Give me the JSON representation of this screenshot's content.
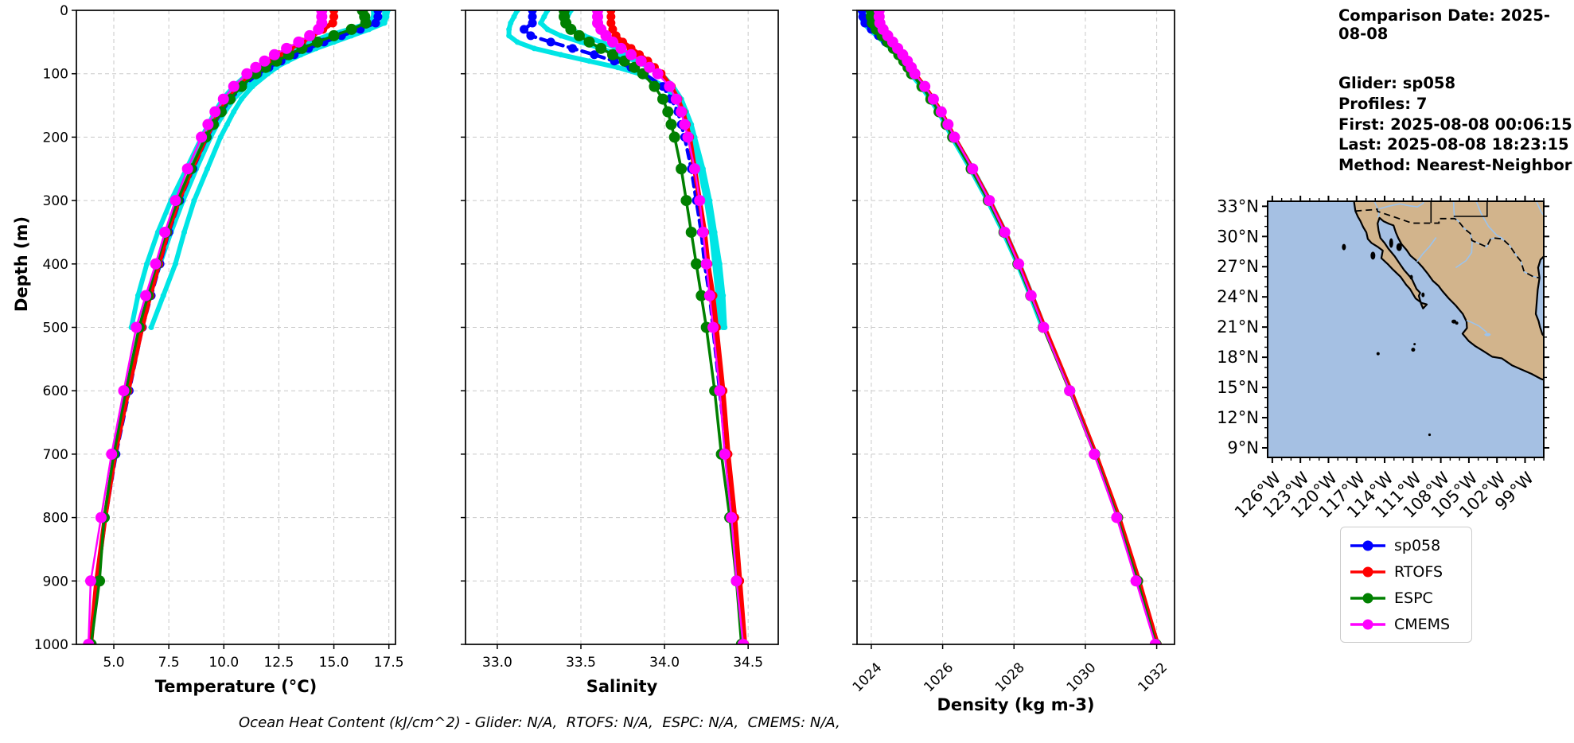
{
  "info_panel": {
    "comparison_date": "Comparison Date: 2025-08-08",
    "glider": "Glider: sp058",
    "profiles": "Profiles: 7",
    "first": "First: 2025-08-08 00:06:15",
    "last": "Last: 2025-08-08 18:23:15",
    "method": "Method: Nearest-Neighbor"
  },
  "axes": {
    "depth_label": "Depth (m)"
  },
  "footer": {
    "ohc_note": "Ocean Heat Content (kJ/cm^2) - Glider: N/A,  RTOFS: N/A,  ESPC: N/A,  CMEMS: N/A,"
  },
  "legend": {
    "items": [
      {
        "label": "sp058",
        "color": "#0000FF"
      },
      {
        "label": "RTOFS",
        "color": "#FF0000"
      },
      {
        "label": "ESPC",
        "color": "#008000"
      },
      {
        "label": "CMEMS",
        "color": "#FF00FF"
      }
    ]
  },
  "map": {
    "lat_tick_labels": [
      "33°N",
      "30°N",
      "27°N",
      "24°N",
      "21°N",
      "18°N",
      "15°N",
      "12°N",
      "9°N"
    ],
    "lat_tick_values": [
      33,
      30,
      27,
      24,
      21,
      18,
      15,
      12,
      9
    ],
    "lon_tick_labels": [
      "126°W",
      "123°W",
      "120°W",
      "117°W",
      "114°W",
      "111°W",
      "108°W",
      "105°W",
      "102°W",
      "99°W"
    ],
    "lon_tick_values": [
      -126,
      -123,
      -120,
      -117,
      -114,
      -111,
      -108,
      -105,
      -102,
      -99
    ],
    "ocean_color": "#A5C0E3",
    "land_color": "#D2B48C",
    "river_color": "#9CC3EC",
    "coast_color": "#000000"
  },
  "chart_data": [
    {
      "type": "line",
      "name": "temperature-profile",
      "xlabel": "Temperature (°C)",
      "ylabel": "Depth (m)",
      "xlim": [
        3.3,
        17.8
      ],
      "ylim": [
        0,
        1000
      ],
      "y_inverted": true,
      "grid": true,
      "xticks": [
        5.0,
        7.5,
        10.0,
        12.5,
        15.0,
        17.5
      ],
      "xtick_labels": [
        "5.0",
        "7.5",
        "10.0",
        "12.5",
        "15.0",
        "17.5"
      ],
      "yticks": [
        0,
        100,
        200,
        300,
        400,
        500,
        600,
        700,
        800,
        900,
        1000
      ],
      "depths": [
        0,
        10,
        20,
        30,
        40,
        50,
        60,
        70,
        80,
        90,
        100,
        120,
        140,
        160,
        180,
        200,
        250,
        300,
        350,
        400,
        450,
        500,
        600,
        700,
        800,
        900,
        1000
      ],
      "series": [
        {
          "name": "glider-raw-1",
          "color": "#00E5E5",
          "line_width": 6,
          "dash": null,
          "marker_size": 3.5,
          "values": [
            17.3,
            17.3,
            17.2,
            16.1,
            15.1,
            14.3,
            13.7,
            13.2,
            12.8,
            12.4,
            12.0,
            11.3,
            10.8,
            10.45,
            10.15,
            9.85,
            9.25,
            8.65,
            8.2,
            7.8,
            7.25,
            6.7,
            null,
            null,
            null,
            null,
            null
          ]
        },
        {
          "name": "glider-raw-2",
          "color": "#00E5E5",
          "line_width": 6,
          "dash": null,
          "marker_size": 3.5,
          "values": [
            16.8,
            16.8,
            16.6,
            15.7,
            14.7,
            13.9,
            13.2,
            12.5,
            12.0,
            11.5,
            11.1,
            10.45,
            9.95,
            9.6,
            9.3,
            9.0,
            8.3,
            7.6,
            7.0,
            6.5,
            6.1,
            5.8,
            null,
            null,
            null,
            null,
            null
          ]
        },
        {
          "name": "glider-raw-3",
          "color": "#00E5E5",
          "line_width": 6,
          "dash": null,
          "marker_size": 3.5,
          "values": [
            17.45,
            17.4,
            17.3,
            16.6,
            15.8,
            15.0,
            14.2,
            13.5,
            12.9,
            12.35,
            11.8,
            11.0,
            10.45,
            10.05,
            9.7,
            9.4,
            8.75,
            8.15,
            7.6,
            7.1,
            6.6,
            6.25,
            null,
            null,
            null,
            null,
            null
          ]
        },
        {
          "name": "sp058",
          "color": "#0000FF",
          "line_width": 4.5,
          "dash": "11 7",
          "marker_size": 5.5,
          "values": [
            17.0,
            17.0,
            16.9,
            16.2,
            15.35,
            14.55,
            13.85,
            13.2,
            12.6,
            12.05,
            11.55,
            10.85,
            10.3,
            9.9,
            9.55,
            9.25,
            8.6,
            8.0,
            7.5,
            7.1,
            6.7,
            6.3,
            5.7,
            5.1,
            4.62,
            4.25,
            3.95
          ]
        },
        {
          "name": "RTOFS",
          "color": "#FF0000",
          "line_width": 6,
          "dash": null,
          "marker_size": 5.5,
          "values": [
            15.0,
            15.0,
            14.95,
            14.5,
            14.0,
            13.55,
            13.0,
            12.5,
            12.1,
            11.7,
            11.3,
            10.7,
            10.2,
            9.82,
            9.5,
            9.2,
            8.55,
            7.95,
            7.45,
            7.05,
            6.65,
            6.28,
            5.65,
            5.05,
            4.6,
            4.22,
            3.95
          ]
        },
        {
          "name": "ESPC",
          "color": "#008000",
          "line_width": 3.5,
          "dash": null,
          "marker_size": 7,
          "values": [
            16.3,
            16.4,
            16.45,
            15.8,
            15.0,
            14.25,
            13.55,
            12.95,
            12.4,
            11.9,
            11.45,
            10.8,
            10.28,
            9.88,
            9.52,
            9.18,
            8.5,
            7.9,
            7.38,
            6.95,
            6.55,
            6.15,
            5.55,
            5.0,
            4.56,
            4.35,
            3.97
          ]
        },
        {
          "name": "CMEMS",
          "color": "#FF00FF",
          "line_width": 2.5,
          "dash": null,
          "marker_size": 7,
          "values": [
            14.45,
            14.45,
            14.45,
            14.3,
            13.9,
            13.4,
            12.85,
            12.3,
            11.85,
            11.45,
            11.05,
            10.45,
            9.98,
            9.6,
            9.28,
            8.98,
            8.35,
            7.8,
            7.32,
            6.9,
            6.45,
            6.02,
            5.45,
            4.9,
            4.42,
            3.95,
            3.85
          ]
        }
      ]
    },
    {
      "type": "line",
      "name": "salinity-profile",
      "xlabel": "Salinity",
      "ylabel": "Depth (m)",
      "xlim": [
        32.81,
        34.68
      ],
      "ylim": [
        0,
        1000
      ],
      "y_inverted": true,
      "grid": true,
      "xticks": [
        33.0,
        33.5,
        34.0,
        34.5
      ],
      "xtick_labels": [
        "33.0",
        "33.5",
        "34.0",
        "34.5"
      ],
      "yticks": [
        0,
        100,
        200,
        300,
        400,
        500,
        600,
        700,
        800,
        900,
        1000
      ],
      "depths": [
        0,
        10,
        20,
        30,
        40,
        50,
        60,
        70,
        80,
        90,
        100,
        120,
        140,
        160,
        180,
        200,
        250,
        300,
        350,
        400,
        450,
        500,
        600,
        700,
        800,
        900,
        1000
      ],
      "series": [
        {
          "name": "glider-raw-1",
          "color": "#00E5E5",
          "line_width": 6,
          "dash": null,
          "marker_size": 3.5,
          "values": [
            33.12,
            33.1,
            33.08,
            33.07,
            33.07,
            33.12,
            33.22,
            33.38,
            33.55,
            33.72,
            33.85,
            34.0,
            34.07,
            34.11,
            34.14,
            34.16,
            34.21,
            34.25,
            34.28,
            34.3,
            34.32,
            34.33,
            null,
            null,
            null,
            null,
            null
          ]
        },
        {
          "name": "glider-raw-2",
          "color": "#00E5E5",
          "line_width": 6,
          "dash": null,
          "marker_size": 3.5,
          "values": [
            33.3,
            33.28,
            33.26,
            33.3,
            33.38,
            33.5,
            33.62,
            33.73,
            33.83,
            33.91,
            33.97,
            34.05,
            34.1,
            34.13,
            34.15,
            34.17,
            34.22,
            34.26,
            34.29,
            34.32,
            34.34,
            34.35,
            null,
            null,
            null,
            null,
            null
          ]
        },
        {
          "name": "glider-raw-3",
          "color": "#00E5E5",
          "line_width": 6,
          "dash": null,
          "marker_size": 3.5,
          "values": [
            33.44,
            33.42,
            33.4,
            33.44,
            33.52,
            33.62,
            33.72,
            33.8,
            33.87,
            33.93,
            33.98,
            34.05,
            34.1,
            34.13,
            34.16,
            34.18,
            34.23,
            34.27,
            34.3,
            34.33,
            34.35,
            34.36,
            null,
            null,
            null,
            null,
            null
          ]
        },
        {
          "name": "sp058",
          "color": "#0000FF",
          "line_width": 4.5,
          "dash": "11 7",
          "marker_size": 5.5,
          "values": [
            33.21,
            33.21,
            33.21,
            33.16,
            33.2,
            33.32,
            33.45,
            33.58,
            33.7,
            33.8,
            33.88,
            33.99,
            34.04,
            34.08,
            34.1,
            34.12,
            34.16,
            34.19,
            34.22,
            34.24,
            34.27,
            34.29,
            34.33,
            34.37,
            34.41,
            34.44,
            34.47
          ]
        },
        {
          "name": "RTOFS",
          "color": "#FF0000",
          "line_width": 6,
          "dash": null,
          "marker_size": 5.5,
          "values": [
            33.68,
            33.68,
            33.68,
            33.69,
            33.71,
            33.75,
            33.8,
            33.85,
            33.9,
            33.94,
            33.98,
            34.04,
            34.08,
            34.11,
            34.13,
            34.15,
            34.18,
            34.21,
            34.24,
            34.26,
            34.29,
            34.31,
            34.35,
            34.38,
            34.42,
            34.45,
            34.48
          ]
        },
        {
          "name": "ESPC",
          "color": "#008000",
          "line_width": 3.5,
          "dash": null,
          "marker_size": 7,
          "values": [
            33.4,
            33.4,
            33.41,
            33.44,
            33.49,
            33.55,
            33.62,
            33.69,
            33.76,
            33.82,
            33.87,
            33.94,
            33.99,
            34.02,
            34.04,
            34.06,
            34.1,
            34.13,
            34.16,
            34.19,
            34.22,
            34.25,
            34.3,
            34.34,
            34.39,
            34.43,
            34.46
          ]
        },
        {
          "name": "CMEMS",
          "color": "#FF00FF",
          "line_width": 2.5,
          "dash": null,
          "marker_size": 7,
          "values": [
            33.6,
            33.6,
            33.6,
            33.62,
            33.65,
            33.69,
            33.74,
            33.8,
            33.86,
            33.91,
            33.96,
            34.03,
            34.07,
            34.1,
            34.12,
            34.14,
            34.18,
            34.21,
            34.23,
            34.25,
            34.27,
            34.29,
            34.33,
            34.36,
            34.4,
            34.43,
            34.47
          ]
        }
      ]
    },
    {
      "type": "line",
      "name": "density-profile",
      "xlabel": "Density (kg m-3)",
      "ylabel": "Depth (m)",
      "xlim": [
        1023.6,
        1032.5
      ],
      "ylim": [
        0,
        1000
      ],
      "y_inverted": true,
      "grid": true,
      "rotate_xtick_labels": 45,
      "xticks": [
        1024,
        1026,
        1028,
        1030,
        1032
      ],
      "xtick_labels": [
        "1024",
        "1026",
        "1028",
        "1030",
        "1032"
      ],
      "yticks": [
        0,
        100,
        200,
        300,
        400,
        500,
        600,
        700,
        800,
        900,
        1000
      ],
      "depths": [
        0,
        10,
        20,
        30,
        40,
        50,
        60,
        70,
        80,
        90,
        100,
        120,
        140,
        160,
        180,
        200,
        250,
        300,
        350,
        400,
        450,
        500,
        600,
        700,
        800,
        900,
        1000
      ],
      "series": [
        {
          "name": "glider-raw-1",
          "color": "#00E5E5",
          "line_width": 6,
          "dash": null,
          "marker_size": 3.5,
          "values": [
            1023.7,
            1023.72,
            1023.78,
            1023.95,
            1024.15,
            1024.35,
            1024.55,
            1024.72,
            1024.88,
            1025.0,
            1025.1,
            1025.4,
            1025.65,
            1025.88,
            1026.08,
            1026.26,
            1026.78,
            1027.26,
            1027.7,
            1028.1,
            1028.46,
            1028.8,
            null,
            null,
            null,
            null,
            null
          ]
        },
        {
          "name": "glider-raw-2",
          "color": "#00E5E5",
          "line_width": 6,
          "dash": null,
          "marker_size": 3.5,
          "values": [
            1023.78,
            1023.8,
            1023.86,
            1024.03,
            1024.23,
            1024.43,
            1024.62,
            1024.79,
            1024.94,
            1025.06,
            1025.16,
            1025.46,
            1025.71,
            1025.94,
            1026.14,
            1026.32,
            1026.84,
            1027.32,
            1027.76,
            1028.15,
            1028.51,
            1028.85,
            null,
            null,
            null,
            null,
            null
          ]
        },
        {
          "name": "sp058",
          "color": "#0000FF",
          "line_width": 4.5,
          "dash": "11 7",
          "marker_size": 5.5,
          "values": [
            1023.74,
            1023.76,
            1023.82,
            1024.0,
            1024.2,
            1024.4,
            1024.6,
            1024.77,
            1024.92,
            1025.04,
            1025.14,
            1025.44,
            1025.69,
            1025.92,
            1026.12,
            1026.3,
            1026.82,
            1027.3,
            1027.74,
            1028.13,
            1028.49,
            1028.84,
            1029.58,
            1030.28,
            1030.92,
            1031.48,
            1032.0
          ]
        },
        {
          "name": "RTOFS",
          "color": "#FF0000",
          "line_width": 6,
          "dash": null,
          "marker_size": 5.5,
          "values": [
            1024.18,
            1024.18,
            1024.2,
            1024.3,
            1024.44,
            1024.58,
            1024.73,
            1024.87,
            1025.0,
            1025.11,
            1025.21,
            1025.49,
            1025.73,
            1025.95,
            1026.14,
            1026.32,
            1026.83,
            1027.31,
            1027.75,
            1028.14,
            1028.5,
            1028.85,
            1029.59,
            1030.29,
            1030.94,
            1031.5,
            1032.02
          ]
        },
        {
          "name": "ESPC",
          "color": "#008000",
          "line_width": 3.5,
          "dash": null,
          "marker_size": 7,
          "values": [
            1024.0,
            1024.0,
            1024.03,
            1024.14,
            1024.3,
            1024.46,
            1024.62,
            1024.77,
            1024.91,
            1025.03,
            1025.13,
            1025.42,
            1025.67,
            1025.9,
            1026.1,
            1026.28,
            1026.8,
            1027.28,
            1027.72,
            1028.11,
            1028.47,
            1028.82,
            1029.56,
            1030.26,
            1030.9,
            1031.46,
            1031.98
          ]
        },
        {
          "name": "CMEMS",
          "color": "#FF00FF",
          "line_width": 2.5,
          "dash": null,
          "marker_size": 7,
          "values": [
            1024.22,
            1024.22,
            1024.24,
            1024.33,
            1024.46,
            1024.6,
            1024.74,
            1024.88,
            1025.01,
            1025.12,
            1025.22,
            1025.5,
            1025.74,
            1025.96,
            1026.15,
            1026.33,
            1026.84,
            1027.31,
            1027.74,
            1028.13,
            1028.48,
            1028.83,
            1029.56,
            1030.25,
            1030.88,
            1031.42,
            1031.96
          ]
        }
      ]
    }
  ]
}
